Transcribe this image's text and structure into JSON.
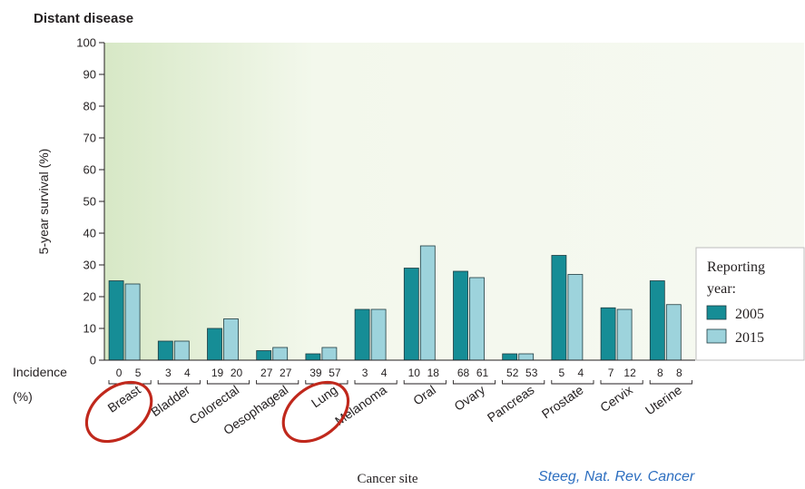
{
  "chart_data": {
    "type": "bar",
    "title": "Distant disease",
    "ylabel": "5-year survival (%)",
    "xlabel": "Cancer site",
    "ylim": [
      0,
      100
    ],
    "yticks": [
      0,
      10,
      20,
      30,
      40,
      50,
      60,
      70,
      80,
      90,
      100
    ],
    "grid": false,
    "legend_position": "right",
    "legend_title": "Reporting year:",
    "categories": [
      "Breast",
      "Bladder",
      "Colorectal",
      "Oesophageal",
      "Lung",
      "Melanoma",
      "Oral",
      "Ovary",
      "Pancreas",
      "Prostate",
      "Cervix",
      "Uterine"
    ],
    "series": [
      {
        "name": "2005",
        "color": "#168d96",
        "values": [
          25,
          6,
          10,
          3,
          2,
          16,
          29,
          28,
          2,
          33,
          16.5,
          25
        ]
      },
      {
        "name": "2015",
        "color": "#9dd3dc",
        "values": [
          24,
          6,
          13,
          4,
          4,
          16,
          36,
          26,
          2,
          27,
          16,
          17.5
        ]
      }
    ],
    "incidence_label": "Incidence (%)",
    "incidence": [
      [
        "0",
        "5"
      ],
      [
        "3",
        "4"
      ],
      [
        "19",
        "20"
      ],
      [
        "27",
        "27"
      ],
      [
        "39",
        "57"
      ],
      [
        "3",
        "4"
      ],
      [
        "10",
        "18"
      ],
      [
        "68",
        "61"
      ],
      [
        "52",
        "53"
      ],
      [
        "5",
        "4"
      ],
      [
        "7",
        "12"
      ],
      [
        "8",
        "8"
      ]
    ],
    "highlighted_categories": [
      "Breast",
      "Lung"
    ],
    "highlight_color": "#c0281c",
    "plot_background": "#eef5e4",
    "credit": "Steeg, Nat. Rev. Cancer"
  }
}
